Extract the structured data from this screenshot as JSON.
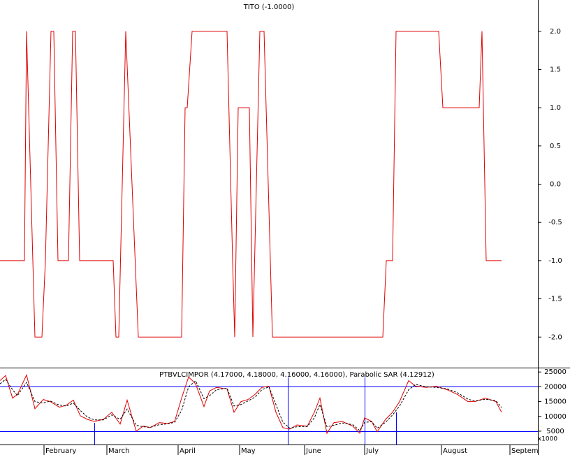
{
  "chart_data": [
    {
      "type": "line",
      "title": "TITO (-1.0000)",
      "x": [
        0,
        7,
        7.6,
        10,
        12,
        13,
        14.6,
        15.4,
        16.6,
        19.6,
        20.8,
        21.6,
        22.8,
        32.4,
        33.2,
        34,
        36,
        39.6,
        52,
        53,
        53.6,
        55,
        65,
        66.6,
        67.2,
        68.2,
        71.4,
        72.4,
        74.4,
        75.6,
        78,
        109.6,
        110.6,
        112.4,
        113.4,
        125.6,
        126.8,
        137.2,
        138,
        139.2,
        143.6
      ],
      "values": [
        -1,
        -1,
        2,
        -2,
        -2,
        -1,
        2,
        2,
        -1,
        -1,
        2,
        2,
        -1,
        -1,
        -2,
        -2,
        2,
        -2,
        -2,
        1,
        1,
        2,
        2,
        -1,
        -2,
        1,
        1,
        -2,
        2,
        2,
        -2,
        -2,
        -1,
        -1,
        2,
        2,
        1,
        1,
        2,
        -1,
        -1
      ],
      "color": "#e00000",
      "xlim": [
        0,
        154
      ],
      "ylim": [
        -2.4,
        2.4
      ],
      "yticks": [
        {
          "value": 2,
          "label": "2.0"
        },
        {
          "value": 1.5,
          "label": "1.5"
        },
        {
          "value": 1,
          "label": "1.0"
        },
        {
          "value": 0.5,
          "label": "0.5"
        },
        {
          "value": 0,
          "label": "0.0"
        },
        {
          "value": -0.5,
          "label": "-0.5"
        },
        {
          "value": -1,
          "label": "-1.0"
        },
        {
          "value": -1.5,
          "label": "-1.5"
        },
        {
          "value": -2,
          "label": "-2.0"
        }
      ]
    },
    {
      "type": "line",
      "title": "PTBVLCIMPOR (4.17000, 4.18000, 4.16000, 4.16000), Parabolic SAR (4.12912)",
      "x": [
        0,
        1.6,
        3.6,
        5,
        7.6,
        10,
        12.4,
        14.4,
        17,
        19,
        21,
        23,
        25,
        27,
        29.6,
        32,
        34.4,
        36.4,
        39,
        41,
        43,
        45.6,
        48,
        50,
        52,
        54,
        56,
        58.4,
        60,
        62,
        65,
        67,
        69,
        71,
        73,
        75,
        77,
        79,
        81,
        83,
        85,
        88,
        90,
        91.6,
        93.6,
        95.6,
        98,
        101,
        103,
        104.4,
        106.4,
        108,
        110.4,
        112.4,
        114.4,
        117,
        119,
        122,
        125,
        128,
        131,
        134,
        136,
        139,
        142,
        143.6
      ],
      "series": [
        {
          "color": "#e00000",
          "style": "solid",
          "values": [
            22100,
            23800,
            16200,
            17400,
            24000,
            12600,
            15700,
            15000,
            13100,
            13800,
            15500,
            10200,
            9000,
            8300,
            9000,
            11400,
            7400,
            15500,
            5000,
            6700,
            6200,
            7900,
            7600,
            8300,
            16200,
            23300,
            21000,
            13300,
            18600,
            19800,
            19300,
            11400,
            15000,
            15700,
            17400,
            19800,
            20200,
            11400,
            6200,
            5700,
            7100,
            6700,
            11400,
            16200,
            4300,
            7900,
            8300,
            6700,
            4300,
            9500,
            8300,
            4800,
            9000,
            11400,
            15000,
            22100,
            20200,
            19800,
            20200,
            19000,
            17400,
            15000,
            15000,
            16200,
            15000,
            11400
          ]
        },
        {
          "color": "#000000",
          "style": "dashed",
          "values": [
            21000,
            22500,
            19000,
            17000,
            21500,
            15000,
            14500,
            15200,
            13800,
            13500,
            14500,
            12000,
            9800,
            8800,
            8800,
            10500,
            9000,
            12500,
            7000,
            6500,
            6300,
            7200,
            7500,
            8000,
            12000,
            20000,
            22000,
            16000,
            17000,
            19000,
            19500,
            13500,
            14000,
            15200,
            16500,
            19000,
            20000,
            14000,
            8000,
            6000,
            6500,
            6600,
            9500,
            14000,
            6500,
            7000,
            7800,
            7200,
            5200,
            8000,
            8200,
            6000,
            8000,
            10500,
            13500,
            19000,
            20800,
            20000,
            19800,
            19300,
            18000,
            15800,
            15200,
            15800,
            15300,
            13000
          ]
        }
      ],
      "xlim": [
        0,
        154
      ],
      "ylim": [
        500,
        26000
      ],
      "yticks": [
        25000,
        20000,
        15000,
        10000,
        5000
      ],
      "unit_label": "x1000",
      "xticks": [
        {
          "value": 12.6,
          "label": "February"
        },
        {
          "value": 30.6,
          "label": "March"
        },
        {
          "value": 51,
          "label": "April"
        },
        {
          "value": 68.6,
          "label": "May"
        },
        {
          "value": 87.2,
          "label": "June"
        },
        {
          "value": 104.4,
          "label": "July"
        },
        {
          "value": 126.4,
          "label": "August"
        },
        {
          "value": 146,
          "label": "Septem"
        }
      ]
    }
  ]
}
